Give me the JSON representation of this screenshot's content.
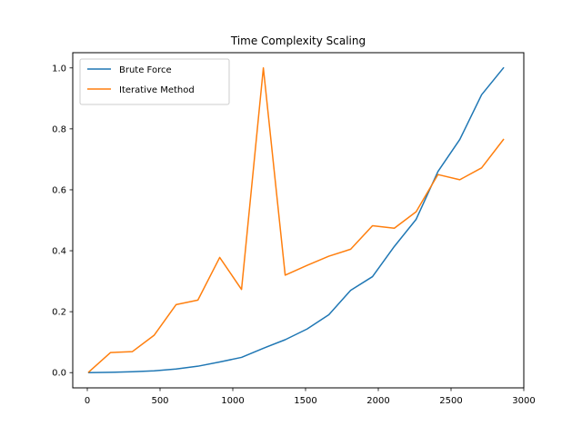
{
  "chart_data": {
    "type": "line",
    "title": "Time Complexity Scaling",
    "xlabel": "",
    "ylabel": "",
    "xlim": [
      -100,
      3000
    ],
    "ylim": [
      -0.05,
      1.05
    ],
    "x_ticks": [
      0,
      500,
      1000,
      1500,
      2000,
      2500,
      3000
    ],
    "y_ticks": [
      0.0,
      0.2,
      0.4,
      0.6,
      0.8,
      1.0
    ],
    "x_tick_labels": [
      "0",
      "500",
      "1000",
      "1500",
      "2000",
      "2500",
      "3000"
    ],
    "y_tick_labels": [
      "0.0",
      "0.2",
      "0.4",
      "0.6",
      "0.8",
      "1.0"
    ],
    "grid": false,
    "legend_position": "top-left",
    "x": [
      10,
      160,
      310,
      460,
      610,
      760,
      910,
      1060,
      1210,
      1360,
      1510,
      1660,
      1810,
      1960,
      2110,
      2260,
      2410,
      2560,
      2710,
      2860
    ],
    "series": [
      {
        "name": "Brute Force",
        "color": "#1f77b4",
        "values": [
          0.0,
          0.001,
          0.003,
          0.006,
          0.012,
          0.021,
          0.035,
          0.05,
          0.08,
          0.108,
          0.143,
          0.19,
          0.27,
          0.315,
          0.414,
          0.503,
          0.66,
          0.765,
          0.912,
          1.0
        ]
      },
      {
        "name": "Iterative Method",
        "color": "#ff7f0e",
        "values": [
          0.002,
          0.066,
          0.069,
          0.123,
          0.223,
          0.238,
          0.378,
          0.273,
          1.0,
          0.32,
          0.352,
          0.382,
          0.405,
          0.482,
          0.474,
          0.528,
          0.65,
          0.633,
          0.672,
          0.765
        ]
      }
    ]
  }
}
